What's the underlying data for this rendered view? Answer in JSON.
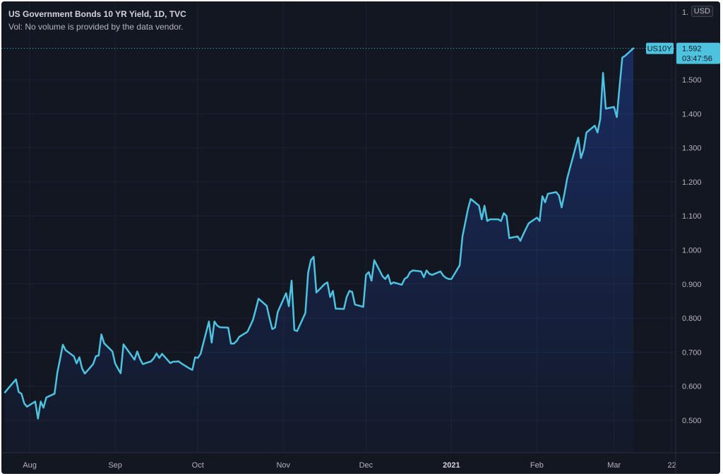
{
  "header": {
    "title": "US Government Bonds 10 YR Yield, 1D, TVC",
    "volume_note": "Vol: No volume is provided by the data vendor."
  },
  "currency_button": "USD",
  "price_tag": {
    "symbol": "US10Y",
    "value": "1.592",
    "countdown": "03:47:56"
  },
  "colors": {
    "background": "#131722",
    "line": "#4ec3e0",
    "grid": "#1e2230",
    "text": "#b2b5be",
    "tag_bg": "#4ec3e0"
  },
  "chart_data": {
    "type": "area",
    "title": "US Government Bonds 10 YR Yield, 1D, TVC",
    "ylim": [
      0.5,
      1.6
    ],
    "yticks": [
      "0.500",
      "0.600",
      "0.700",
      "0.800",
      "0.900",
      "1.000",
      "1.100",
      "1.200",
      "1.300",
      "1.400",
      "1.500"
    ],
    "xticks": [
      "Aug",
      "Sep",
      "Oct",
      "Nov",
      "Dec",
      "2021",
      "Feb",
      "Mar",
      "22"
    ],
    "grid": true,
    "series": [
      {
        "dates": [
          "2020-07-23",
          "2020-07-24",
          "2020-07-27",
          "2020-07-28",
          "2020-07-29",
          "2020-07-30",
          "2020-07-31",
          "2020-08-03",
          "2020-08-04",
          "2020-08-05",
          "2020-08-06",
          "2020-08-07",
          "2020-08-10",
          "2020-08-11",
          "2020-08-12",
          "2020-08-13",
          "2020-08-14",
          "2020-08-17",
          "2020-08-18",
          "2020-08-19",
          "2020-08-20",
          "2020-08-21",
          "2020-08-24",
          "2020-08-25",
          "2020-08-26",
          "2020-08-27",
          "2020-08-28",
          "2020-08-31",
          "2020-09-01",
          "2020-09-02",
          "2020-09-03",
          "2020-09-04",
          "2020-09-08",
          "2020-09-09",
          "2020-09-10",
          "2020-09-11",
          "2020-09-14",
          "2020-09-15",
          "2020-09-16",
          "2020-09-17",
          "2020-09-18",
          "2020-09-21",
          "2020-09-22",
          "2020-09-23",
          "2020-09-24",
          "2020-09-25",
          "2020-09-28",
          "2020-09-29",
          "2020-09-30",
          "2020-10-01",
          "2020-10-02",
          "2020-10-05",
          "2020-10-06",
          "2020-10-07",
          "2020-10-08",
          "2020-10-09",
          "2020-10-12",
          "2020-10-13",
          "2020-10-14",
          "2020-10-15",
          "2020-10-16",
          "2020-10-19",
          "2020-10-20",
          "2020-10-21",
          "2020-10-22",
          "2020-10-23",
          "2020-10-26",
          "2020-10-27",
          "2020-10-28",
          "2020-10-29",
          "2020-10-30",
          "2020-11-02",
          "2020-11-03",
          "2020-11-04",
          "2020-11-05",
          "2020-11-06",
          "2020-11-09",
          "2020-11-10",
          "2020-11-11",
          "2020-11-12",
          "2020-11-13",
          "2020-11-16",
          "2020-11-17",
          "2020-11-18",
          "2020-11-19",
          "2020-11-20",
          "2020-11-23",
          "2020-11-24",
          "2020-11-25",
          "2020-11-26",
          "2020-11-27",
          "2020-11-30",
          "2020-12-01",
          "2020-12-02",
          "2020-12-03",
          "2020-12-04",
          "2020-12-07",
          "2020-12-08",
          "2020-12-09",
          "2020-12-10",
          "2020-12-11",
          "2020-12-14",
          "2020-12-15",
          "2020-12-16",
          "2020-12-17",
          "2020-12-18",
          "2020-12-21",
          "2020-12-22",
          "2020-12-23",
          "2020-12-24",
          "2020-12-25",
          "2020-12-28",
          "2020-12-29",
          "2020-12-30",
          "2020-12-31",
          "2021-01-01",
          "2021-01-04",
          "2021-01-05",
          "2021-01-06",
          "2021-01-07",
          "2021-01-08",
          "2021-01-11",
          "2021-01-12",
          "2021-01-13",
          "2021-01-14",
          "2021-01-15",
          "2021-01-18",
          "2021-01-19",
          "2021-01-20",
          "2021-01-21",
          "2021-01-22",
          "2021-01-25",
          "2021-01-26",
          "2021-01-27",
          "2021-01-28",
          "2021-01-29",
          "2021-02-01",
          "2021-02-02",
          "2021-02-03",
          "2021-02-04",
          "2021-02-05",
          "2021-02-08",
          "2021-02-09",
          "2021-02-10",
          "2021-02-11",
          "2021-02-12",
          "2021-02-15",
          "2021-02-16",
          "2021-02-17",
          "2021-02-18",
          "2021-02-19",
          "2021-02-22",
          "2021-02-23",
          "2021-02-24",
          "2021-02-25",
          "2021-02-26",
          "2021-03-01",
          "2021-03-02",
          "2021-03-03",
          "2021-03-04",
          "2021-03-05",
          "2021-03-08"
        ],
        "values": [
          0.582,
          0.592,
          0.62,
          0.583,
          0.578,
          0.55,
          0.54,
          0.555,
          0.505,
          0.555,
          0.537,
          0.567,
          0.578,
          0.64,
          0.68,
          0.722,
          0.706,
          0.688,
          0.667,
          0.685,
          0.652,
          0.637,
          0.665,
          0.688,
          0.69,
          0.752,
          0.726,
          0.702,
          0.667,
          0.652,
          0.638,
          0.723,
          0.678,
          0.702,
          0.68,
          0.665,
          0.673,
          0.682,
          0.696,
          0.683,
          0.695,
          0.668,
          0.672,
          0.672,
          0.673,
          0.667,
          0.652,
          0.648,
          0.685,
          0.683,
          0.695,
          0.79,
          0.728,
          0.79,
          0.778,
          0.773,
          0.772,
          0.725,
          0.725,
          0.732,
          0.745,
          0.76,
          0.777,
          0.795,
          0.825,
          0.857,
          0.836,
          0.8,
          0.768,
          0.772,
          0.818,
          0.873,
          0.835,
          0.91,
          0.765,
          0.762,
          0.815,
          0.933,
          0.97,
          0.98,
          0.875,
          0.9,
          0.905,
          0.862,
          0.88,
          0.828,
          0.827,
          0.862,
          0.88,
          0.877,
          0.84,
          0.833,
          0.927,
          0.935,
          0.91,
          0.97,
          0.923,
          0.915,
          0.927,
          0.9,
          0.905,
          0.898,
          0.915,
          0.92,
          0.935,
          0.94,
          0.937,
          0.92,
          0.94,
          0.93,
          0.927,
          0.937,
          0.925,
          0.918,
          0.915,
          0.915,
          0.955,
          1.04,
          1.08,
          1.12,
          1.15,
          1.13,
          1.09,
          1.13,
          1.085,
          1.09,
          1.09,
          1.085,
          1.108,
          1.1,
          1.035,
          1.04,
          1.027,
          1.045,
          1.062,
          1.078,
          1.095,
          1.085,
          1.158,
          1.14,
          1.165,
          1.17,
          1.16,
          1.125,
          1.165,
          1.21,
          1.3,
          1.33,
          1.27,
          1.295,
          1.345,
          1.365,
          1.345,
          1.385,
          1.52,
          1.415,
          1.42,
          1.39,
          1.48,
          1.565,
          1.57,
          1.592
        ]
      }
    ]
  }
}
